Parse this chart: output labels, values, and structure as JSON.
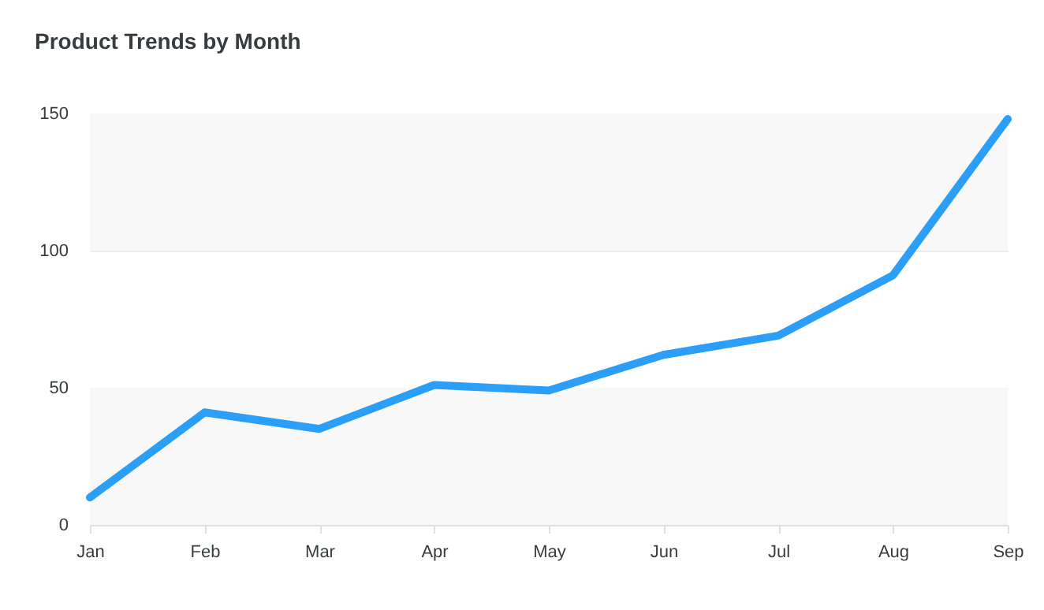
{
  "chart_data": {
    "type": "line",
    "title": "Product Trends by Month",
    "categories": [
      "Jan",
      "Feb",
      "Mar",
      "Apr",
      "May",
      "Jun",
      "Jul",
      "Aug",
      "Sep"
    ],
    "series": [
      {
        "color": "#2b9ef8",
        "values": [
          10,
          41,
          35,
          51,
          49,
          62,
          69,
          91,
          148
        ]
      }
    ],
    "ylim": [
      0,
      150
    ],
    "yticks": [
      0,
      50,
      100,
      150
    ],
    "grid": "y",
    "marker": "none",
    "line_style": "solid",
    "bands": [
      {
        "axis": "y",
        "from": 0,
        "to": 50,
        "color": "#f8f8f8"
      },
      {
        "axis": "y",
        "from": 100,
        "to": 150,
        "color": "#f8f8f8"
      }
    ]
  }
}
